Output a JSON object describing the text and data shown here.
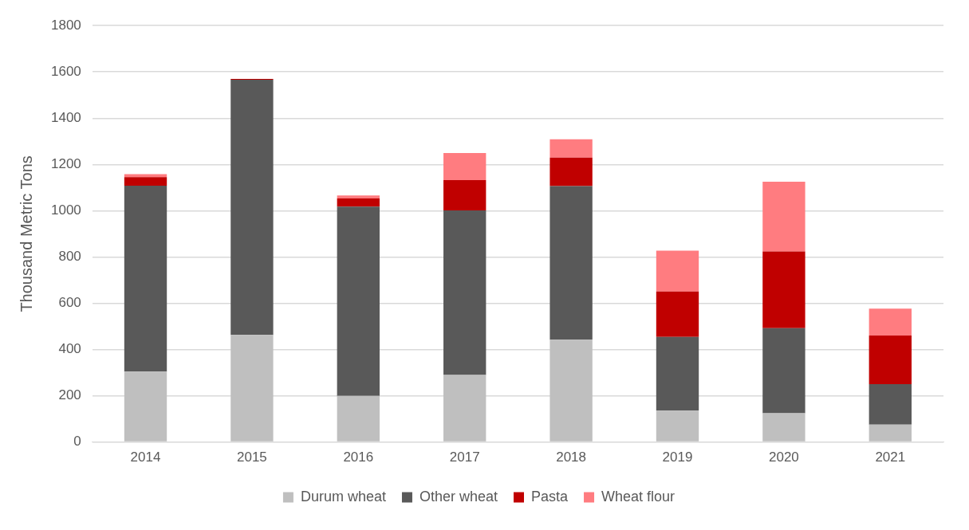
{
  "chart_data": {
    "type": "bar",
    "ylabel": "Thousand Metric Tons",
    "categories": [
      "2014",
      "2015",
      "2016",
      "2017",
      "2018",
      "2019",
      "2020",
      "2021"
    ],
    "stacked": true,
    "series": [
      {
        "name": "Durum wheat",
        "color": "#bfbfbf",
        "values": [
          304,
          463,
          199,
          290,
          442,
          136,
          124,
          75
        ]
      },
      {
        "name": "Other wheat",
        "color": "#595959",
        "values": [
          804,
          1103,
          819,
          711,
          664,
          318,
          368,
          175
        ]
      },
      {
        "name": "Pasta",
        "color": "#c00000",
        "values": [
          37,
          4,
          35,
          131,
          124,
          197,
          332,
          210
        ]
      },
      {
        "name": "Wheat flour",
        "color": "#ff7c80",
        "values": [
          13,
          0,
          13,
          117,
          79,
          176,
          301,
          117
        ]
      }
    ],
    "ylim": [
      0,
      1800
    ],
    "yticks": [
      0,
      200,
      400,
      600,
      800,
      1000,
      1200,
      1400,
      1600,
      1800
    ],
    "grid": "y",
    "legend": "bottom"
  }
}
